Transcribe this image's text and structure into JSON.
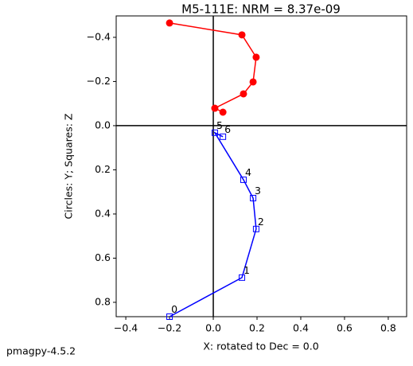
{
  "chart_data": {
    "type": "zijderveld",
    "title": "M5-111E: NRM =  8.37e-09",
    "x_label": "X: rotated to Dec =     0.0",
    "y_label": "Circles: Y; Squares: Z",
    "footer": "pmagpy-4.5.2",
    "x": [
      -0.2,
      0.131,
      0.196,
      0.182,
      0.138,
      0.007,
      0.044
    ],
    "point_labels": [
      "0",
      "1",
      "2",
      "3",
      "4",
      "5",
      "6"
    ],
    "series": [
      {
        "marker": "circle",
        "color": "#ff0000",
        "values": [
          -0.465,
          -0.411,
          -0.31,
          -0.198,
          -0.144,
          -0.079,
          -0.061
        ]
      },
      {
        "marker": "square",
        "color": "#0000ff",
        "values": [
          0.865,
          0.688,
          0.468,
          0.328,
          0.245,
          0.032,
          0.05
        ]
      }
    ],
    "xlim": [
      -0.444,
      0.884
    ],
    "ylim": [
      -0.497,
      0.865
    ],
    "y_inverted": true,
    "xticks": [
      {
        "value": -0.4,
        "label": "−0.4"
      },
      {
        "value": -0.2,
        "label": "−0.2"
      },
      {
        "value": 0,
        "label": "0.0"
      },
      {
        "value": 0.2,
        "label": "0.2"
      },
      {
        "value": 0.4,
        "label": "0.4"
      },
      {
        "value": 0.6,
        "label": "0.6"
      },
      {
        "value": 0.8,
        "label": "0.8"
      }
    ],
    "yticks": [
      {
        "value": -0.4,
        "label": "−0.4"
      },
      {
        "value": -0.2,
        "label": "−0.2"
      },
      {
        "value": 0,
        "label": "0.0"
      },
      {
        "value": 0.2,
        "label": "0.2"
      },
      {
        "value": 0.4,
        "label": "0.4"
      },
      {
        "value": 0.6,
        "label": "0.6"
      },
      {
        "value": 0.8,
        "label": "0.8"
      }
    ]
  }
}
